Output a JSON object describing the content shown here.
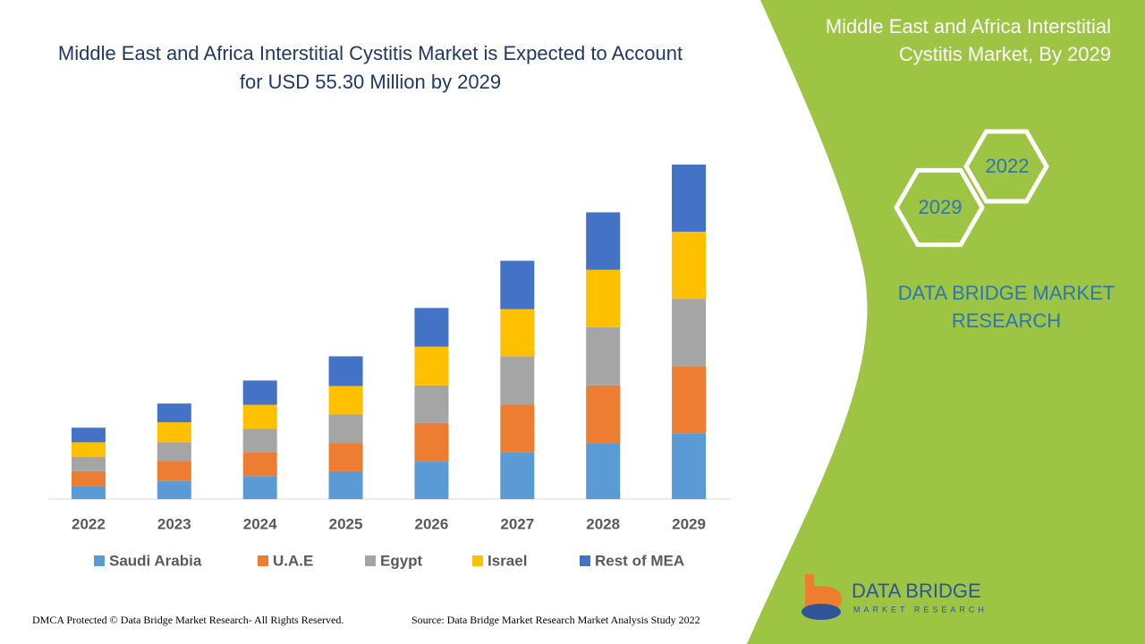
{
  "chart_data": {
    "type": "stacked_bar",
    "title": "Middle East and Africa Interstitial Cystitis Market is Expected to Account for USD 55.30 Million by 2029",
    "categories": [
      "2022",
      "2023",
      "2024",
      "2025",
      "2026",
      "2027",
      "2028",
      "2029"
    ],
    "series": [
      {
        "name": "Saudi Arabia",
        "color": "#5b9bd5",
        "values": [
          2.2,
          3.0,
          3.8,
          4.6,
          6.2,
          7.8,
          9.3,
          10.9
        ]
      },
      {
        "name": "U.A.E",
        "color": "#ed7d31",
        "values": [
          2.4,
          3.3,
          4.0,
          4.7,
          6.4,
          7.8,
          9.5,
          11.1
        ]
      },
      {
        "name": "Egypt",
        "color": "#a5a5a5",
        "values": [
          2.4,
          3.1,
          3.8,
          4.7,
          6.2,
          8.0,
          9.6,
          11.1
        ]
      },
      {
        "name": "Israel",
        "color": "#ffc000",
        "values": [
          2.4,
          3.3,
          4.0,
          4.7,
          6.4,
          7.8,
          9.5,
          11.1
        ]
      },
      {
        "name": "Rest of MEA",
        "color": "#4472c4",
        "values": [
          2.4,
          3.1,
          4.0,
          4.9,
          6.4,
          8.0,
          9.5,
          11.1
        ]
      }
    ],
    "legend": "bottom"
  },
  "panel": {
    "title": "Middle East and Africa Interstitial Cystitis Market, By 2029",
    "hex_start": "2022",
    "hex_end": "2029",
    "brand": "DATA BRIDGE MARKET RESEARCH"
  },
  "logo": {
    "name": "DATA BRIDGE",
    "tagline": "MARKET RESEARCH"
  },
  "footer": {
    "copyright": "DMCA Protected © Data Bridge Market Research- All Rights Reserved.",
    "source": "Source: Data Bridge Market Research Market Analysis Study 2022"
  }
}
